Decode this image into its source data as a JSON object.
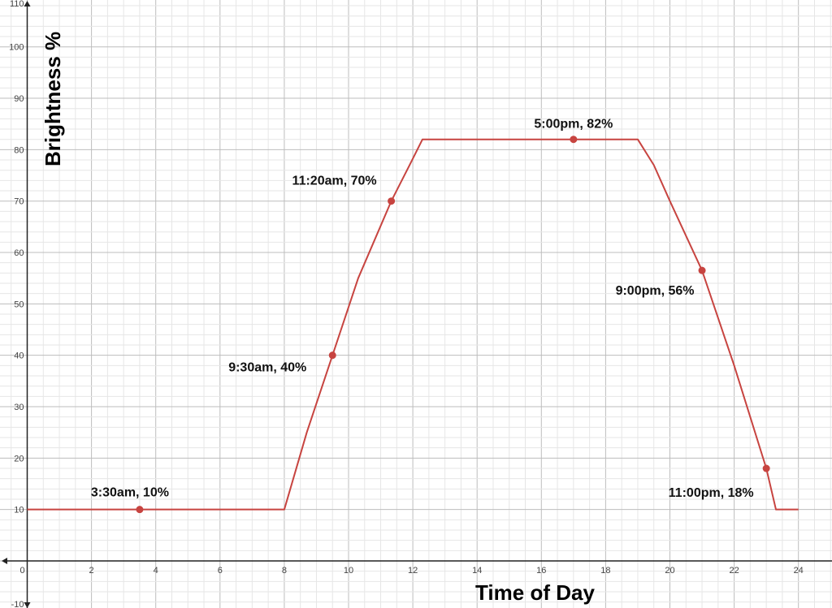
{
  "chart_data": {
    "type": "line",
    "title": "",
    "xlabel": "Time of Day",
    "ylabel": "Brightness %",
    "xlim": [
      -0.8,
      25
    ],
    "ylim": [
      -10,
      110
    ],
    "grid": true,
    "x_ticks": [
      0,
      2,
      4,
      6,
      8,
      10,
      12,
      14,
      16,
      18,
      20,
      22,
      24
    ],
    "y_ticks": [
      -10,
      10,
      20,
      30,
      40,
      50,
      60,
      70,
      80,
      90,
      100,
      110
    ],
    "series_color": "#c74440",
    "curve": {
      "x": [
        0,
        8,
        8.7,
        9.5,
        10.3,
        11.33,
        11.9,
        12.3,
        19,
        19.5,
        20,
        21,
        22,
        23,
        23.3,
        24
      ],
      "y": [
        10,
        10,
        25,
        40,
        55,
        70,
        77,
        82,
        82,
        77,
        70,
        56.5,
        38,
        18,
        10,
        10
      ]
    },
    "points": [
      {
        "x": 3.5,
        "y": 10,
        "label": "3:30am, 10%"
      },
      {
        "x": 9.5,
        "y": 40,
        "label": "9:30am, 40%"
      },
      {
        "x": 11.33,
        "y": 70,
        "label": "11:20am, 70%"
      },
      {
        "x": 17,
        "y": 82,
        "label": "5:00pm, 82%"
      },
      {
        "x": 21,
        "y": 56.5,
        "label": "9:00pm, 56%"
      },
      {
        "x": 23,
        "y": 18,
        "label": "11:00pm, 18%"
      }
    ]
  }
}
